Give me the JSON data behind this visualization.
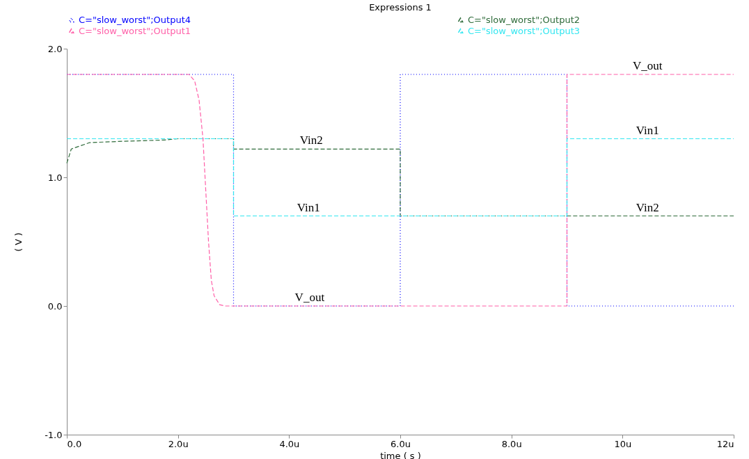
{
  "chart_data": {
    "type": "line",
    "title": "Expressions 1",
    "xlabel": "time ( s )",
    "ylabel": "( V )",
    "xlim": [
      0,
      12
    ],
    "ylim": [
      -1,
      2
    ],
    "xticks": [
      {
        "value": 0,
        "label": "0.0"
      },
      {
        "value": 2,
        "label": "2.0u"
      },
      {
        "value": 4,
        "label": "4.0u"
      },
      {
        "value": 6,
        "label": "6.0u"
      },
      {
        "value": 8,
        "label": "8.0u"
      },
      {
        "value": 10,
        "label": "10u"
      },
      {
        "value": 12,
        "label": "12u"
      }
    ],
    "yticks": [
      {
        "value": -1,
        "label": "-1.0"
      },
      {
        "value": 0,
        "label": "0.0"
      },
      {
        "value": 1,
        "label": "1.0"
      },
      {
        "value": 2,
        "label": "2.0"
      }
    ],
    "grid": false,
    "legend": "top",
    "line_style": "dashed",
    "series": [
      {
        "name": "C=\"slow_worst\";Output4",
        "color": "#0000ff",
        "line_style": "dotted",
        "x": [
          0,
          3,
          3,
          6,
          6,
          9,
          9,
          12
        ],
        "values": [
          1.8,
          1.8,
          0,
          0,
          1.8,
          1.8,
          0,
          0
        ]
      },
      {
        "name": "C=\"slow_worst\";Output2",
        "color": "#2e6b3a",
        "x": [
          0,
          0.08,
          0.41,
          1.0,
          1.75,
          2.0,
          3,
          3,
          6,
          6,
          9,
          12
        ],
        "values": [
          1.11,
          1.22,
          1.27,
          1.28,
          1.29,
          1.3,
          1.3,
          1.22,
          1.22,
          0.7,
          0.7,
          0.7
        ]
      },
      {
        "name": "C=\"slow_worst\";Output1",
        "color": "#ff5fa8",
        "x": [
          0,
          2.2,
          2.3,
          2.38,
          2.45,
          2.5,
          2.55,
          2.6,
          2.65,
          2.75,
          2.85,
          9,
          9,
          12
        ],
        "values": [
          1.8,
          1.8,
          1.75,
          1.6,
          1.3,
          0.9,
          0.5,
          0.2,
          0.08,
          0.01,
          0,
          0,
          1.8,
          1.8
        ]
      },
      {
        "name": "C=\"slow_worst\";Output3",
        "color": "#33e6f0",
        "x": [
          0,
          3,
          3,
          9,
          9,
          12
        ],
        "values": [
          1.3,
          1.3,
          0.7,
          0.7,
          1.3,
          1.3
        ]
      }
    ],
    "annotations": [
      {
        "text": "V_out",
        "x": 10.45,
        "y": 1.8
      },
      {
        "text": "Vin1",
        "x": 10.45,
        "y": 1.3
      },
      {
        "text": "Vin2",
        "x": 10.45,
        "y": 0.7
      },
      {
        "text": "Vin2",
        "x": 4.4,
        "y": 1.22
      },
      {
        "text": "Vin1",
        "x": 4.35,
        "y": 0.7
      },
      {
        "text": "V_out",
        "x": 4.37,
        "y": 0
      }
    ]
  }
}
